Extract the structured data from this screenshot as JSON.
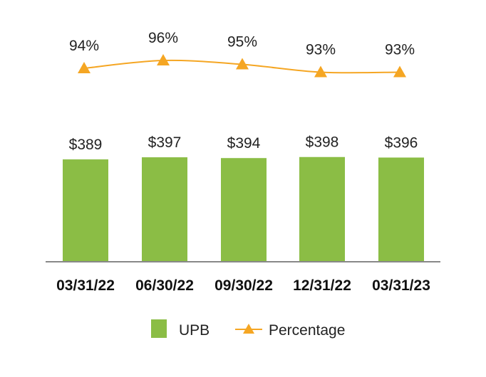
{
  "chart_data": {
    "type": "bar",
    "categories": [
      "03/31/22",
      "06/30/22",
      "09/30/22",
      "12/31/22",
      "03/31/23"
    ],
    "series": [
      {
        "name": "UPB",
        "type": "bar",
        "values": [
          389,
          397,
          394,
          398,
          396
        ],
        "data_labels": [
          "$389",
          "$397",
          "$394",
          "$398",
          "$396"
        ]
      },
      {
        "name": "Percentage",
        "type": "line",
        "marker": "triangle",
        "values": [
          94,
          96,
          95,
          93,
          93
        ],
        "data_labels": [
          "94%",
          "96%",
          "95%",
          "93%",
          "93%"
        ]
      }
    ],
    "legend_position": "bottom-center",
    "grid": false,
    "colors": {
      "bar": "#8bbd45",
      "line": "#f5a623",
      "axis": "#888888"
    }
  }
}
